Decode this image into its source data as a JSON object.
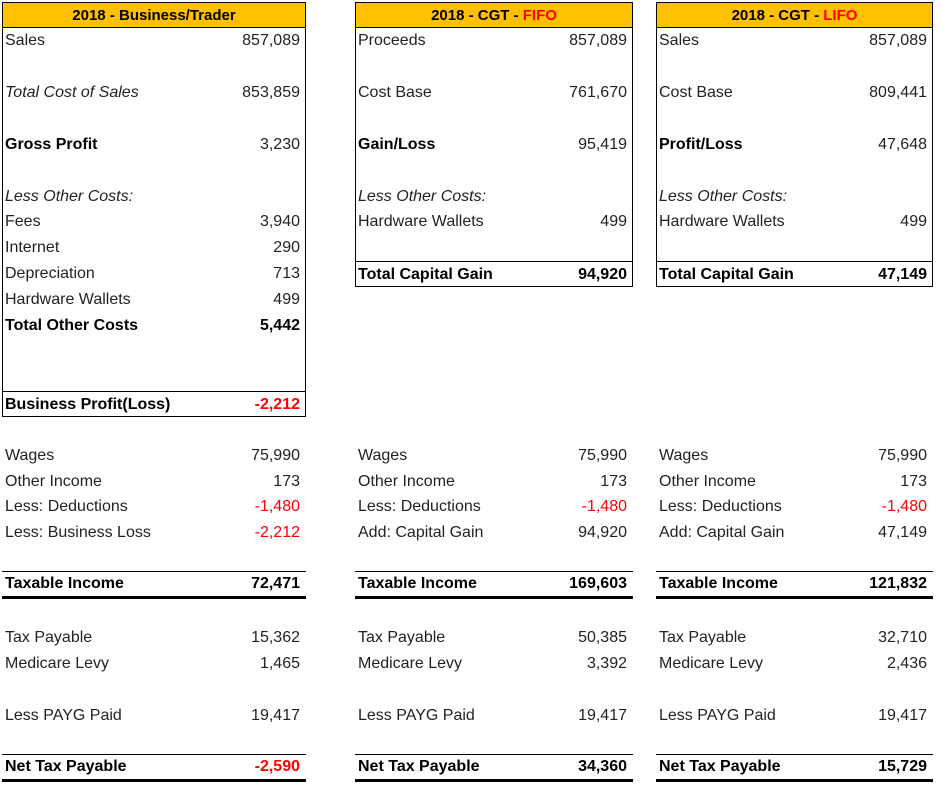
{
  "panels": [
    {
      "title": {
        "prefix": "2018 - Business/Trader"
      },
      "rows": [
        [
          "Sales",
          "857,089"
        ],
        [
          "Total Cost of Sales",
          "853,859"
        ],
        [
          "Gross Profit",
          "3,230"
        ],
        [
          "Less Other Costs:"
        ],
        [
          "Fees",
          "3,940"
        ],
        [
          "Internet",
          "290"
        ],
        [
          "Depreciation",
          "713"
        ],
        [
          "Hardware Wallets",
          "499"
        ],
        [
          "Total Other Costs",
          "5,442"
        ],
        [
          "Business Profit(Loss)",
          "-2,212"
        ],
        [
          "Wages",
          "75,990"
        ],
        [
          "Other Income",
          "173"
        ],
        [
          "Less: Deductions",
          "-1,480"
        ],
        [
          "Less: Business Loss",
          "-2,212"
        ],
        [
          "Taxable Income",
          "72,471"
        ],
        [
          "Tax Payable",
          "15,362"
        ],
        [
          "Medicare Levy",
          "1,465"
        ],
        [
          "Less PAYG Paid",
          "19,417"
        ],
        [
          "Net Tax Payable",
          "-2,590"
        ]
      ]
    },
    {
      "title": {
        "prefix": "2018 - CGT - ",
        "highlight": "FIFO"
      },
      "rows": [
        [
          "Proceeds",
          "857,089"
        ],
        [
          "Cost Base",
          "761,670"
        ],
        [
          "Gain/Loss",
          "95,419"
        ],
        [
          "Less Other Costs:"
        ],
        [
          "Hardware Wallets",
          "499"
        ],
        [
          "Total Capital Gain",
          "94,920"
        ],
        [
          "Wages",
          "75,990"
        ],
        [
          "Other Income",
          "173"
        ],
        [
          "Less: Deductions",
          "-1,480"
        ],
        [
          "Add: Capital Gain",
          "94,920"
        ],
        [
          "Taxable Income",
          "169,603"
        ],
        [
          "Tax Payable",
          "50,385"
        ],
        [
          "Medicare Levy",
          "3,392"
        ],
        [
          "Less PAYG Paid",
          "19,417"
        ],
        [
          "Net Tax Payable",
          "34,360"
        ]
      ]
    },
    {
      "title": {
        "prefix": "2018 - CGT - ",
        "highlight": "LIFO"
      },
      "rows": [
        [
          "Sales",
          "857,089"
        ],
        [
          "Cost Base",
          "809,441"
        ],
        [
          "Profit/Loss",
          "47,648"
        ],
        [
          "Less Other Costs:"
        ],
        [
          "Hardware Wallets",
          "499"
        ],
        [
          "Total Capital Gain",
          "47,149"
        ],
        [
          "Wages",
          "75,990"
        ],
        [
          "Other Income",
          "173"
        ],
        [
          "Less: Deductions",
          "-1,480"
        ],
        [
          "Add: Capital Gain",
          "47,149"
        ],
        [
          "Taxable Income",
          "121,832"
        ],
        [
          "Tax Payable",
          "32,710"
        ],
        [
          "Medicare Levy",
          "2,436"
        ],
        [
          "Less PAYG Paid",
          "19,417"
        ],
        [
          "Net Tax Payable",
          "15,729"
        ]
      ]
    }
  ]
}
